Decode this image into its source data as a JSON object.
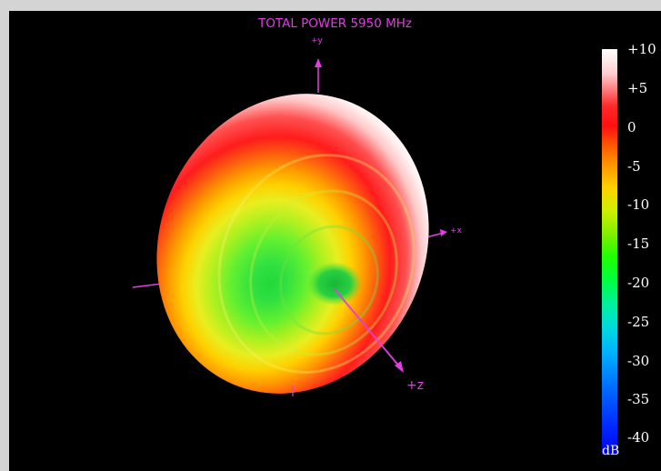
{
  "plot": {
    "title": "TOTAL POWER 5950 MHz",
    "axes": {
      "y_label": "+y",
      "x_label": "+x",
      "z_label": "+z"
    }
  },
  "colorbar": {
    "unit": "dB",
    "ticks": [
      "+10",
      "+5",
      "0",
      "-5",
      "-10",
      "-15",
      "-20",
      "-25",
      "-30",
      "-35",
      "-40"
    ]
  },
  "colors": {
    "background": "#000000",
    "axis": "#e23de2",
    "tick_text": "#ffffff"
  }
}
